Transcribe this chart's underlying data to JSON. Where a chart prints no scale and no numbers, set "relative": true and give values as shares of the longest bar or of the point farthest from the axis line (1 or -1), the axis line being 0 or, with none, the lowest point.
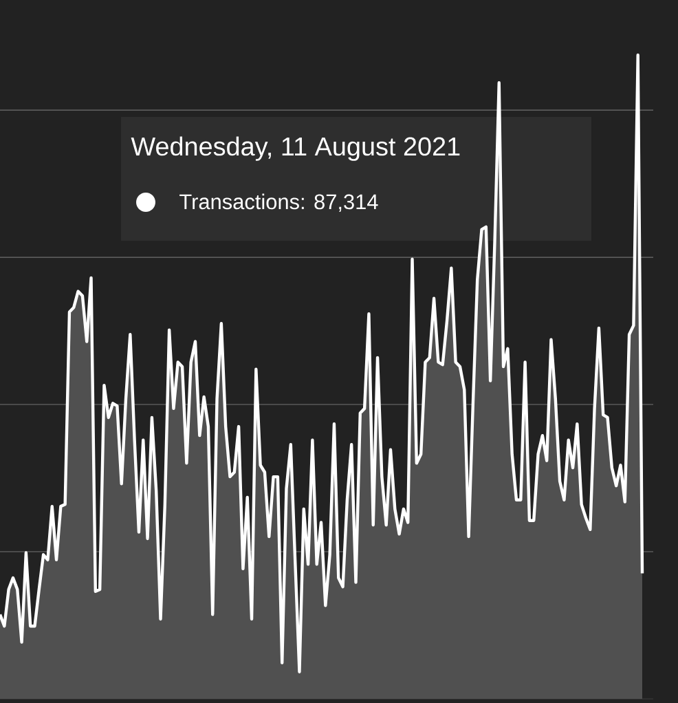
{
  "chart_data": {
    "type": "area",
    "relative": true,
    "grid": "y",
    "marker": "none",
    "categories": [
      null,
      null,
      null,
      null,
      null,
      null,
      null,
      null,
      null,
      null,
      null,
      null,
      null,
      null,
      null,
      null,
      null,
      null,
      null,
      null,
      null,
      null,
      null,
      null,
      null,
      null,
      null,
      null,
      null,
      null,
      null,
      null,
      null,
      null,
      null,
      null,
      null,
      null,
      null,
      null,
      null,
      null,
      null,
      null,
      null,
      null,
      null,
      null,
      null,
      null,
      null,
      null,
      null,
      null,
      null,
      null,
      null,
      null,
      null,
      null,
      null,
      null,
      null,
      null,
      null,
      null,
      null,
      null,
      null,
      null,
      null,
      null,
      null,
      null,
      null,
      null,
      null,
      null,
      null,
      null,
      null,
      null,
      null,
      null,
      null,
      null,
      null,
      null,
      null,
      null,
      null,
      null,
      null,
      null,
      null,
      null,
      null,
      null,
      null,
      null,
      null,
      null,
      null,
      null,
      null,
      null,
      null,
      null,
      null,
      null,
      null,
      null,
      null,
      null,
      null,
      null,
      null,
      null,
      null,
      null,
      null,
      null,
      null,
      null,
      null,
      null,
      null,
      null,
      null,
      null,
      null,
      null,
      null,
      null,
      null,
      null,
      null,
      null,
      null,
      null,
      null,
      null,
      null,
      null,
      null,
      null,
      null,
      null,
      null
    ],
    "series": [
      {
        "color": "#ffffff",
        "values": [
          0.131,
          0.113,
          0.17,
          0.188,
          0.17,
          0.088,
          0.227,
          0.113,
          0.113,
          0.17,
          0.224,
          0.216,
          0.299,
          0.216,
          0.299,
          0.302,
          0.601,
          0.608,
          0.633,
          0.626,
          0.555,
          0.654,
          0.167,
          0.17,
          0.487,
          0.437,
          0.459,
          0.455,
          0.334,
          0.466,
          0.566,
          0.402,
          0.259,
          0.402,
          0.249,
          0.437,
          0.323,
          0.124,
          0.302,
          0.573,
          0.451,
          0.523,
          0.516,
          0.366,
          0.523,
          0.555,
          0.409,
          0.469,
          0.423,
          0.131,
          0.466,
          0.583,
          0.423,
          0.345,
          0.352,
          0.423,
          0.202,
          0.313,
          0.124,
          0.512,
          0.363,
          0.352,
          0.252,
          0.345,
          0.345,
          0.056,
          0.327,
          0.395,
          0.216,
          0.042,
          0.295,
          0.209,
          0.402,
          0.209,
          0.274,
          0.145,
          0.224,
          0.427,
          0.188,
          0.174,
          0.309,
          0.395,
          0.181,
          0.444,
          0.451,
          0.598,
          0.27,
          0.53,
          0.345,
          0.27,
          0.387,
          0.295,
          0.256,
          0.295,
          0.274,
          0.683,
          0.366,
          0.38,
          0.523,
          0.53,
          0.622,
          0.523,
          0.519,
          0.587,
          0.669,
          0.523,
          0.516,
          0.48,
          0.252,
          0.459,
          0.651,
          0.729,
          0.733,
          0.494,
          0.708,
          0.957,
          0.516,
          0.544,
          0.38,
          0.309,
          0.309,
          0.523,
          0.277,
          0.277,
          0.38,
          0.409,
          0.37,
          0.558,
          0.466,
          0.338,
          0.309,
          0.402,
          0.359,
          0.427,
          0.302,
          0.281,
          0.263,
          0.451,
          0.576,
          0.441,
          0.437,
          0.359,
          0.331,
          0.363,
          0.306,
          0.566,
          0.58,
          1,
          0.195
        ]
      }
    ],
    "annotations": [
      "Wednesday, 11 August 2021",
      "Transactions: 87,314"
    ]
  }
}
